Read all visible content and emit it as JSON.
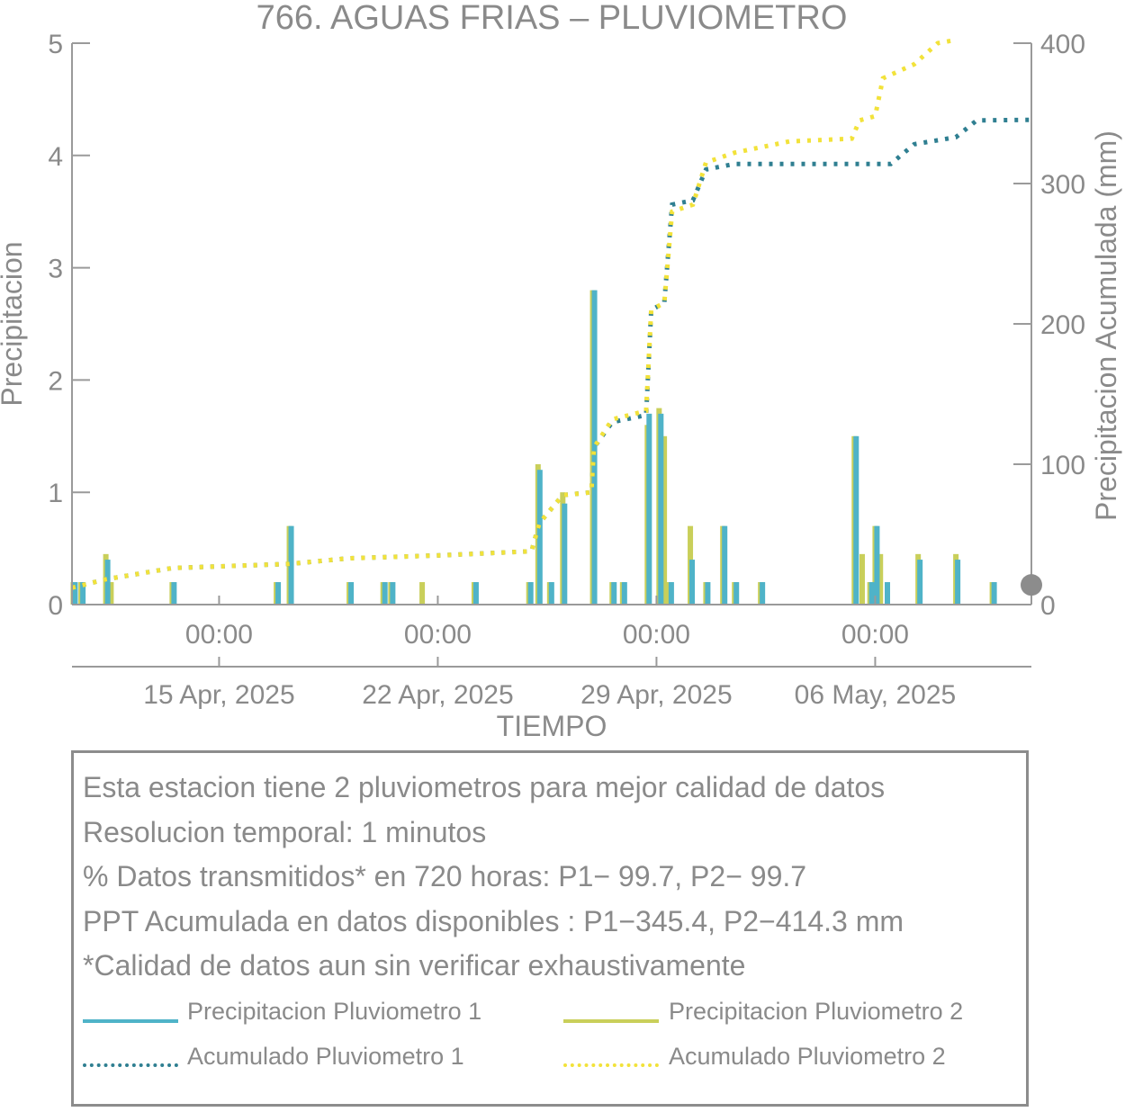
{
  "colors": {
    "p1_bar": "#4fb3c8",
    "p2_bar": "#c9cf5a",
    "acc1": "#2f7f91",
    "acc2": "#f2e23a",
    "axis": "#8c8c8c",
    "text": "#8a8a8a"
  },
  "chart_data": {
    "type": "bar+line",
    "title": "766. AGUAS FRIAS – PLUVIOMETRO",
    "xlabel": "TIEMPO",
    "ylabel_left": "Precipitacion",
    "ylabel_right": "Precipitacion Acumulada (mm)",
    "x_range": [
      "2025-04-10T07:00",
      "2025-05-11T00:00"
    ],
    "ylim_left": [
      0,
      5
    ],
    "ylim_right": [
      0,
      400
    ],
    "yticks_left": [
      "0",
      "1",
      "2",
      "3",
      "4",
      "5"
    ],
    "yticks_right": [
      "0",
      "100",
      "200",
      "300",
      "400"
    ],
    "xticks_time": [
      "00:00",
      "00:00",
      "00:00",
      "00:00"
    ],
    "xticks_date": [
      "15 Apr, 2025",
      "22 Apr, 2025",
      "29 Apr, 2025",
      "06 May, 2025"
    ],
    "xtick_positions": [
      "2025-04-15T00:00",
      "2025-04-22T00:00",
      "2025-04-29T00:00",
      "2025-05-06T00:00"
    ],
    "series_bars": [
      {
        "name": "Precipitacion Pluviometro 1",
        "points": [
          [
            "2025-04-10T08:00",
            0.2
          ],
          [
            "2025-04-10T14:00",
            0.2
          ],
          [
            "2025-04-11T09:00",
            0.4
          ],
          [
            "2025-04-13T12:00",
            0.2
          ],
          [
            "2025-04-16T20:00",
            0.2
          ],
          [
            "2025-04-17T06:00",
            0.7
          ],
          [
            "2025-04-19T04:00",
            0.2
          ],
          [
            "2025-04-20T06:00",
            0.2
          ],
          [
            "2025-04-20T12:00",
            0.2
          ],
          [
            "2025-04-23T04:00",
            0.2
          ],
          [
            "2025-04-24T22:00",
            0.2
          ],
          [
            "2025-04-25T05:00",
            1.2
          ],
          [
            "2025-04-25T14:00",
            0.2
          ],
          [
            "2025-04-26T00:00",
            0.9
          ],
          [
            "2025-04-26T23:00",
            2.8
          ],
          [
            "2025-04-27T14:00",
            0.2
          ],
          [
            "2025-04-27T22:00",
            0.2
          ],
          [
            "2025-04-28T17:00",
            1.7
          ],
          [
            "2025-04-29T02:00",
            1.7
          ],
          [
            "2025-04-29T10:00",
            0.2
          ],
          [
            "2025-04-30T02:00",
            0.4
          ],
          [
            "2025-04-30T14:00",
            0.2
          ],
          [
            "2025-05-01T03:00",
            0.7
          ],
          [
            "2025-05-01T12:00",
            0.2
          ],
          [
            "2025-05-02T08:00",
            0.2
          ],
          [
            "2025-05-05T08:00",
            1.5
          ],
          [
            "2025-05-05T20:00",
            0.2
          ],
          [
            "2025-05-06T00:00",
            0.7
          ],
          [
            "2025-05-06T08:00",
            0.2
          ],
          [
            "2025-05-07T09:00",
            0.4
          ],
          [
            "2025-05-08T14:00",
            0.4
          ],
          [
            "2025-05-09T18:00",
            0.2
          ]
        ]
      },
      {
        "name": "Precipitacion Pluviometro 2",
        "points": [
          [
            "2025-04-10T08:00",
            0.2
          ],
          [
            "2025-04-10T14:00",
            0.2
          ],
          [
            "2025-04-11T09:00",
            0.45
          ],
          [
            "2025-04-11T13:00",
            0.2
          ],
          [
            "2025-04-13T12:00",
            0.2
          ],
          [
            "2025-04-16T20:00",
            0.2
          ],
          [
            "2025-04-17T06:00",
            0.7
          ],
          [
            "2025-04-19T04:00",
            0.2
          ],
          [
            "2025-04-20T06:00",
            0.2
          ],
          [
            "2025-04-20T12:00",
            0.2
          ],
          [
            "2025-04-21T12:00",
            0.2
          ],
          [
            "2025-04-23T04:00",
            0.2
          ],
          [
            "2025-04-24T22:00",
            0.2
          ],
          [
            "2025-04-25T05:00",
            1.25
          ],
          [
            "2025-04-25T14:00",
            0.2
          ],
          [
            "2025-04-26T00:00",
            1.0
          ],
          [
            "2025-04-26T23:00",
            2.8
          ],
          [
            "2025-04-27T14:00",
            0.2
          ],
          [
            "2025-04-27T22:00",
            0.2
          ],
          [
            "2025-04-28T17:00",
            1.6
          ],
          [
            "2025-04-29T02:00",
            1.75
          ],
          [
            "2025-04-29T06:00",
            1.5
          ],
          [
            "2025-04-29T10:00",
            0.2
          ],
          [
            "2025-04-30T02:00",
            0.7
          ],
          [
            "2025-04-30T14:00",
            0.2
          ],
          [
            "2025-05-01T03:00",
            0.7
          ],
          [
            "2025-05-01T12:00",
            0.2
          ],
          [
            "2025-05-02T08:00",
            0.2
          ],
          [
            "2025-05-05T08:00",
            1.5
          ],
          [
            "2025-05-05T14:00",
            0.45
          ],
          [
            "2025-05-05T20:00",
            0.2
          ],
          [
            "2025-05-06T00:00",
            0.7
          ],
          [
            "2025-05-06T04:00",
            0.45
          ],
          [
            "2025-05-07T09:00",
            0.45
          ],
          [
            "2025-05-08T14:00",
            0.45
          ],
          [
            "2025-05-09T18:00",
            0.2
          ]
        ]
      }
    ],
    "series_lines": [
      {
        "name": "Acumulado Pluviometro 1",
        "points": [
          [
            "2025-04-10T07:00",
            12
          ],
          [
            "2025-04-11T09:00",
            18
          ],
          [
            "2025-04-13T12:00",
            26
          ],
          [
            "2025-04-17T06:00",
            29
          ],
          [
            "2025-04-19T04:00",
            33
          ],
          [
            "2025-04-22T00:00",
            35
          ],
          [
            "2025-04-25T00:00",
            38
          ],
          [
            "2025-04-25T06:00",
            58
          ],
          [
            "2025-04-26T00:00",
            78
          ],
          [
            "2025-04-26T22:00",
            80
          ],
          [
            "2025-04-27T00:00",
            112
          ],
          [
            "2025-04-27T14:00",
            130
          ],
          [
            "2025-04-28T16:00",
            135
          ],
          [
            "2025-04-28T20:00",
            210
          ],
          [
            "2025-04-29T06:00",
            215
          ],
          [
            "2025-04-29T12:00",
            285
          ],
          [
            "2025-04-30T04:00",
            288
          ],
          [
            "2025-04-30T14:00",
            310
          ],
          [
            "2025-05-01T12:00",
            314
          ],
          [
            "2025-05-06T12:00",
            314
          ],
          [
            "2025-05-07T06:00",
            328
          ],
          [
            "2025-05-08T14:00",
            333
          ],
          [
            "2025-05-09T06:00",
            345
          ],
          [
            "2025-05-11T00:00",
            345.4
          ]
        ]
      },
      {
        "name": "Acumulado Pluviometro 2",
        "points": [
          [
            "2025-04-10T07:00",
            12
          ],
          [
            "2025-04-11T09:00",
            18
          ],
          [
            "2025-04-13T12:00",
            26
          ],
          [
            "2025-04-17T06:00",
            29
          ],
          [
            "2025-04-19T04:00",
            33
          ],
          [
            "2025-04-22T00:00",
            35
          ],
          [
            "2025-04-25T00:00",
            38
          ],
          [
            "2025-04-25T06:00",
            58
          ],
          [
            "2025-04-26T00:00",
            78
          ],
          [
            "2025-04-26T22:00",
            80
          ],
          [
            "2025-04-27T00:00",
            112
          ],
          [
            "2025-04-27T14:00",
            132
          ],
          [
            "2025-04-28T16:00",
            138
          ],
          [
            "2025-04-28T20:00",
            210
          ],
          [
            "2025-04-29T06:00",
            215
          ],
          [
            "2025-04-29T12:00",
            280
          ],
          [
            "2025-04-30T04:00",
            285
          ],
          [
            "2025-04-30T14:00",
            315
          ],
          [
            "2025-05-01T12:00",
            322
          ],
          [
            "2025-05-03T06:00",
            330
          ],
          [
            "2025-05-05T06:00",
            332
          ],
          [
            "2025-05-05T12:00",
            345
          ],
          [
            "2025-05-06T00:00",
            348
          ],
          [
            "2025-05-06T06:00",
            375
          ],
          [
            "2025-05-07T06:00",
            385
          ],
          [
            "2025-05-08T00:00",
            400
          ],
          [
            "2025-05-08T12:00",
            402
          ]
        ]
      }
    ],
    "marker": {
      "x": "2025-05-11T00:00",
      "y_right": 14
    }
  },
  "info": {
    "lines": [
      "Esta estacion tiene 2 pluviometros para mejor calidad de datos",
      "Resolucion temporal: 1 minutos",
      "% Datos transmitidos* en 720 horas: P1− 99.7, P2− 99.7",
      "PPT Acumulada en datos disponibles : P1−345.4, P2−414.3 mm",
      "*Calidad de datos aun sin verificar exhaustivamente"
    ],
    "legend": {
      "p1_bar": "Precipitacion Pluviometro 1",
      "p2_bar": "Precipitacion Pluviometro 2",
      "acc1": "Acumulado Pluviometro 1",
      "acc2": "Acumulado Pluviometro 2"
    }
  }
}
